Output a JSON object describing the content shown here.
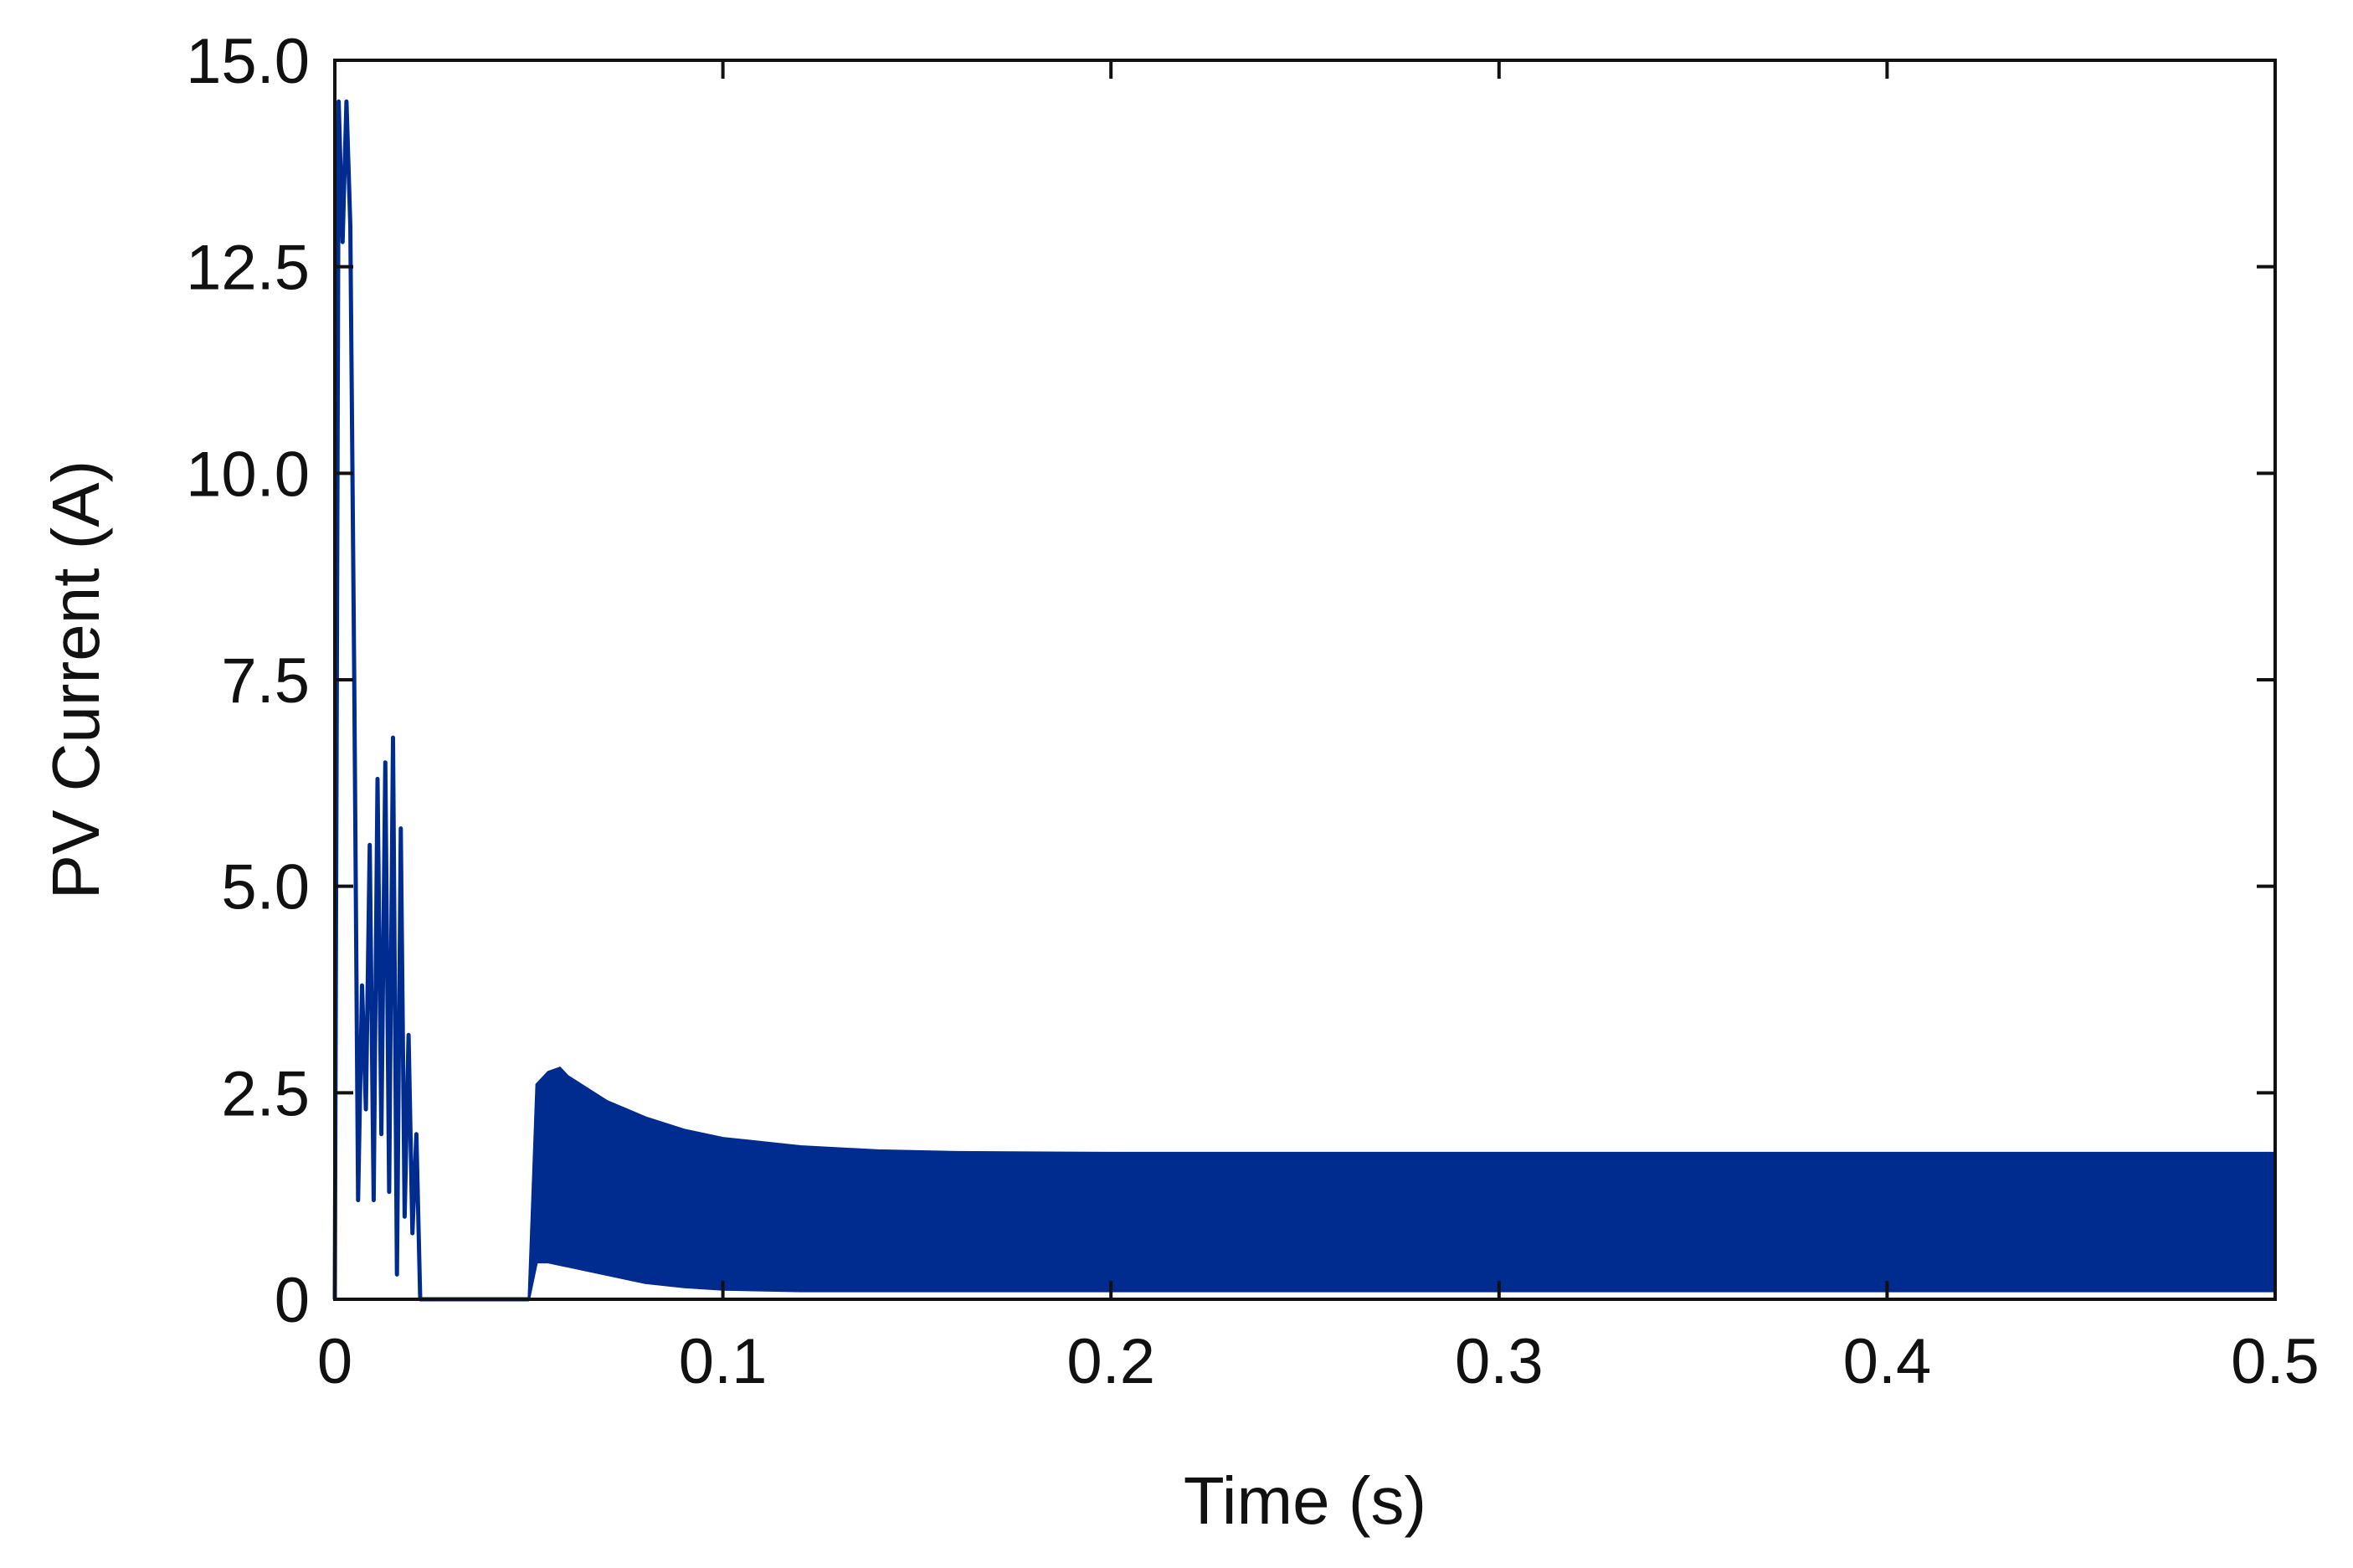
{
  "chart_data": {
    "type": "line",
    "title": "",
    "xlabel": "Time (s)",
    "ylabel": "PV Current (A)",
    "xlim": [
      0,
      0.5
    ],
    "ylim": [
      0,
      15
    ],
    "x_ticks": [
      0,
      0.1,
      0.2,
      0.3,
      0.4,
      0.5
    ],
    "x_tick_labels": [
      "0",
      "0.1",
      "0.2",
      "0.3",
      "0.4",
      "0.5"
    ],
    "y_ticks": [
      0,
      2.5,
      5,
      7.5,
      10,
      12.5,
      15
    ],
    "y_tick_labels": [
      "0",
      "2.5",
      "5.0",
      "7.5",
      "10.0",
      "12.5",
      "15.0"
    ],
    "grid": false,
    "legend": false,
    "series": [
      {
        "color": "#002b8f",
        "transient_x": [
          0,
          0.001,
          0.002,
          0.003,
          0.004,
          0.005,
          0.006,
          0.007,
          0.008,
          0.009,
          0.01,
          0.011,
          0.012,
          0.013,
          0.014,
          0.015,
          0.016,
          0.017,
          0.018,
          0.019,
          0.02,
          0.021,
          0.022,
          0.023,
          0.024,
          0.025,
          0.049,
          0.05
        ],
        "transient_y": [
          0,
          14.5,
          12.8,
          14.5,
          13.0,
          7.5,
          1.2,
          3.8,
          2.3,
          5.5,
          1.2,
          6.3,
          2.0,
          6.5,
          1.3,
          6.8,
          0.3,
          5.7,
          1.0,
          3.2,
          0.8,
          2.0,
          0,
          0,
          0,
          0,
          0,
          0
        ],
        "envelope_x": [
          0.05,
          0.052,
          0.055,
          0.058,
          0.06,
          0.07,
          0.08,
          0.09,
          0.1,
          0.12,
          0.14,
          0.16,
          0.2,
          0.3,
          0.4,
          0.5
        ],
        "envelope_upper": [
          0,
          2.6,
          2.75,
          2.8,
          2.7,
          2.4,
          2.2,
          2.05,
          1.95,
          1.85,
          1.8,
          1.78,
          1.77,
          1.77,
          1.77,
          1.77
        ],
        "envelope_lower": [
          0,
          0.45,
          0.45,
          0.42,
          0.4,
          0.3,
          0.2,
          0.15,
          0.12,
          0.1,
          0.1,
          0.1,
          0.1,
          0.1,
          0.1,
          0.1
        ]
      }
    ]
  }
}
